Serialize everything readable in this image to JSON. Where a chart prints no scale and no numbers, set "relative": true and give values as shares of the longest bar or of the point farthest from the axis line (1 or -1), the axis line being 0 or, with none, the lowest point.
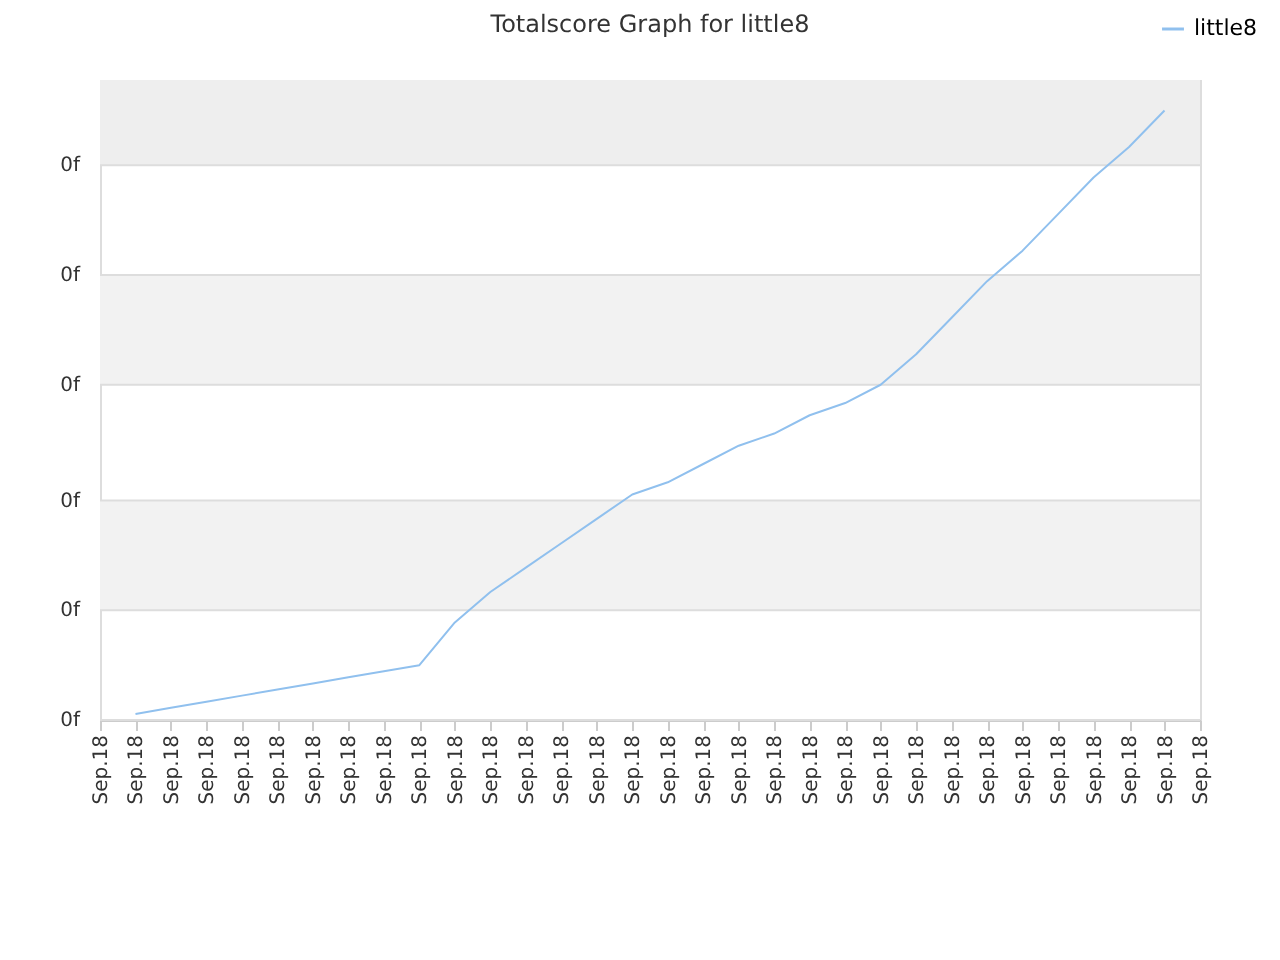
{
  "chart_data": {
    "type": "line",
    "title": "Totalscore Graph for little8",
    "relative": true,
    "categories": [
      "Sep.18",
      "Sep.18",
      "Sep.18",
      "Sep.18",
      "Sep.18",
      "Sep.18",
      "Sep.18",
      "Sep.18",
      "Sep.18",
      "Sep.18",
      "Sep.18",
      "Sep.18",
      "Sep.18",
      "Sep.18",
      "Sep.18",
      "Sep.18",
      "Sep.18",
      "Sep.18",
      "Sep.18",
      "Sep.18",
      "Sep.18",
      "Sep.18",
      "Sep.18",
      "Sep.18",
      "Sep.18",
      "Sep.18",
      "Sep.18",
      "Sep.18",
      "Sep.18",
      "Sep.18",
      "Sep.18",
      "Sep.18"
    ],
    "series": [
      {
        "name": "little8",
        "color": "#90c0ee",
        "values": [
          null,
          0.01,
          0.02,
          0.03,
          0.04,
          0.05,
          0.06,
          0.07,
          0.08,
          0.09,
          0.16,
          0.21,
          0.25,
          0.29,
          0.33,
          0.37,
          0.39,
          0.42,
          0.45,
          0.47,
          0.5,
          0.52,
          0.55,
          0.6,
          0.66,
          0.72,
          0.77,
          0.83,
          0.89,
          0.94,
          1,
          null
        ]
      }
    ],
    "annotations": [
      "0f",
      "0f",
      "0f",
      "0f",
      "0f",
      "0f"
    ],
    "bands": [
      {
        "axis": "y",
        "from": 0.18,
        "to": 0.36,
        "color": "#f2f2f2"
      },
      {
        "axis": "y",
        "from": 0.55,
        "to": 0.73,
        "color": "#f2f2f2"
      },
      {
        "axis": "y",
        "from": 0.91,
        "to": 1.05,
        "color": "#eeeeee"
      }
    ],
    "grid": "y",
    "legend": "top right",
    "marker": "none",
    "line_style": "solid"
  }
}
